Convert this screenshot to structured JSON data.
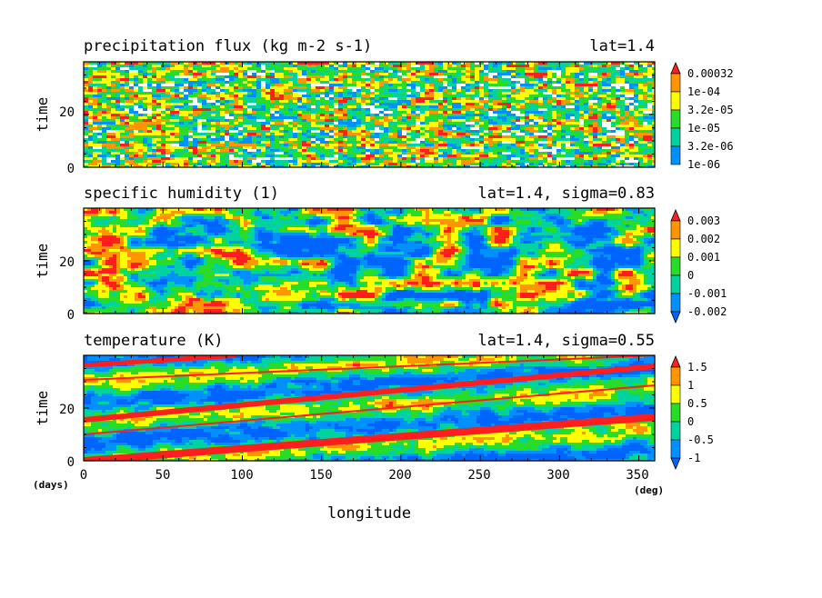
{
  "chart_data": [
    {
      "type": "heatmap",
      "title": "precipitation flux (kg m-2 s-1)",
      "subtitle": "lat=1.4",
      "xlabel": "",
      "ylabel": "time",
      "xlim": [
        0,
        360
      ],
      "ylim": [
        0,
        40
      ],
      "y_ticks": [
        "0",
        "20"
      ],
      "colorbar": {
        "labels": [
          "1e-06",
          "3.2e-06",
          "1e-05",
          "3.2e-05",
          "1e-04",
          "0.00032"
        ],
        "colors": [
          "#ffffff",
          "#0091ff",
          "#00d2a0",
          "#28dc28",
          "#ffff00",
          "#ff9600",
          "#ff1e1e"
        ],
        "scale": "log"
      }
    },
    {
      "type": "heatmap",
      "title": "specific humidity (1)",
      "subtitle": "lat=1.4, sigma=0.83",
      "xlabel": "",
      "ylabel": "time",
      "xlim": [
        0,
        360
      ],
      "ylim": [
        0,
        40
      ],
      "y_ticks": [
        "0",
        "20"
      ],
      "colorbar": {
        "labels": [
          "-0.002",
          "-0.001",
          "0",
          "0.001",
          "0.002",
          "0.003"
        ],
        "colors": [
          "#0064ff",
          "#0091ff",
          "#00d2a0",
          "#28dc28",
          "#ffff00",
          "#ff9600",
          "#ff1e1e"
        ]
      }
    },
    {
      "type": "heatmap",
      "title": "temperature (K)",
      "subtitle": "lat=1.4, sigma=0.55",
      "xlabel": "longitude",
      "ylabel": "time",
      "xlim": [
        0,
        360
      ],
      "ylim": [
        0,
        40
      ],
      "x_ticks": [
        "0",
        "50",
        "100",
        "150",
        "200",
        "250",
        "300",
        "350"
      ],
      "y_ticks": [
        "0",
        "20"
      ],
      "x_unit": "(deg)",
      "y_unit": "(days)",
      "colorbar": {
        "labels": [
          "-1",
          "-0.5",
          "0",
          "0.5",
          "1",
          "1.5"
        ],
        "colors": [
          "#0064ff",
          "#0091ff",
          "#00d2a0",
          "#28dc28",
          "#ffff00",
          "#ff9600",
          "#ff1e1e"
        ]
      }
    }
  ]
}
